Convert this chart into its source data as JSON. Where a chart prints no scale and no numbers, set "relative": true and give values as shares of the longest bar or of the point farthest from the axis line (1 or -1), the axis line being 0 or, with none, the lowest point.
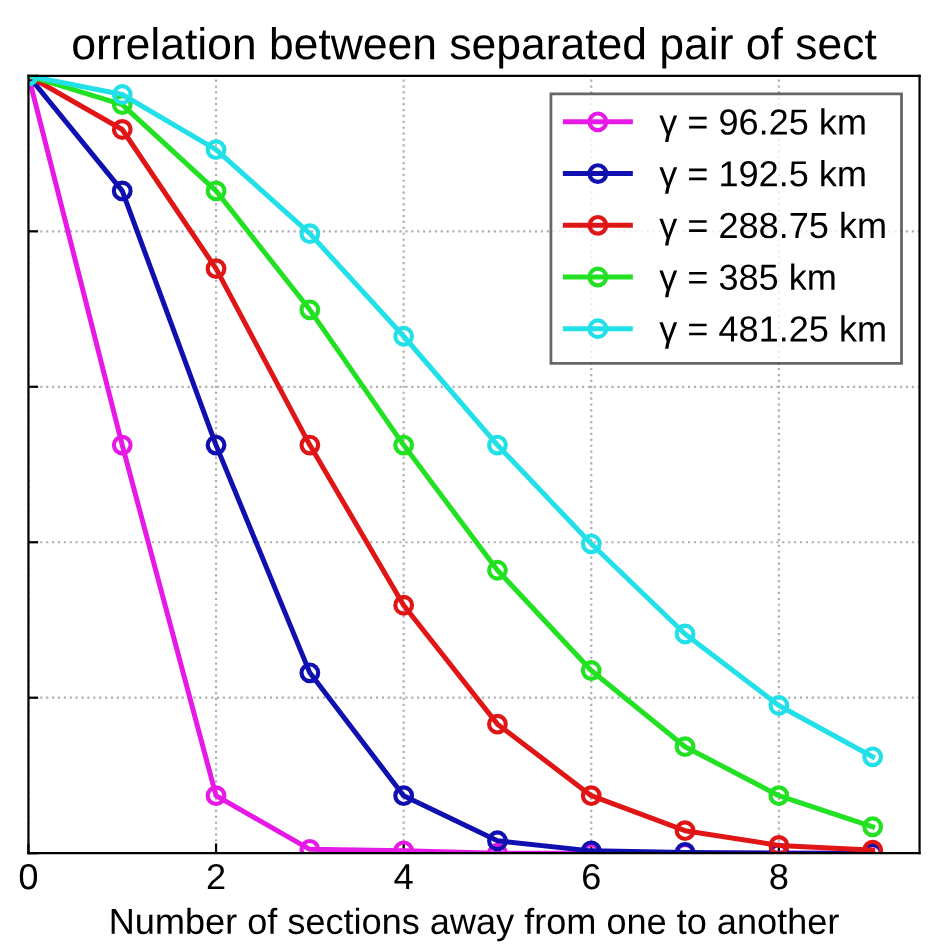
{
  "chart_data": {
    "type": "line",
    "title": "orrelation between separated pair of sect",
    "xlabel": "Number of sections away from one to another",
    "relative": true,
    "x": [
      0,
      1,
      2,
      3,
      4,
      5,
      6,
      7,
      8,
      9
    ],
    "xlim": [
      0,
      9.5
    ],
    "xticks": [
      0,
      2,
      4,
      6,
      8
    ],
    "grid": true,
    "legend": "top right",
    "marker": "circle",
    "line_style": "solid",
    "tick_labels": "x",
    "series": [
      {
        "name": "γ = 96.25 km",
        "color": "#e619e6",
        "values": [
          1,
          0.525,
          0.074,
          0.005,
          0.003,
          0,
          0,
          0,
          0,
          0
        ]
      },
      {
        "name": "γ = 192.5 km",
        "color": "#1010b0",
        "values": [
          1,
          0.852,
          0.525,
          0.232,
          0.074,
          0.016,
          0.003,
          0.001,
          0,
          0
        ]
      },
      {
        "name": "γ = 288.75 km",
        "color": "#e01515",
        "values": [
          1,
          0.931,
          0.752,
          0.525,
          0.319,
          0.166,
          0.074,
          0.029,
          0.01,
          0.004
        ]
      },
      {
        "name": "γ = 385 km",
        "color": "#22e022",
        "values": [
          1,
          0.963,
          0.852,
          0.699,
          0.525,
          0.364,
          0.235,
          0.137,
          0.074,
          0.034
        ]
      },
      {
        "name": "γ = 481.25 km",
        "color": "#22e0e8",
        "values": [
          1,
          0.976,
          0.905,
          0.797,
          0.665,
          0.525,
          0.398,
          0.282,
          0.19,
          0.124
        ]
      }
    ]
  }
}
